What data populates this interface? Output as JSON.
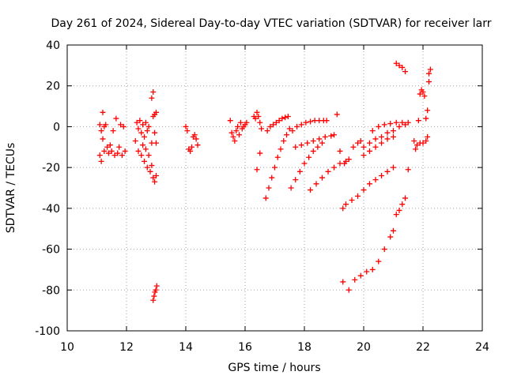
{
  "chart_data": {
    "type": "scatter",
    "title": "Day 261 of 2024, Sidereal Day-to-day VTEC variation (SDTVAR) for receiver larr",
    "xlabel": "GPS time / hours",
    "ylabel": "SDTVAR / TECUs",
    "xlim": [
      10,
      24
    ],
    "ylim": [
      -100,
      40
    ],
    "xticks": [
      10,
      12,
      14,
      16,
      18,
      20,
      22,
      24
    ],
    "yticks": [
      -100,
      -80,
      -60,
      -40,
      -20,
      0,
      20,
      40
    ],
    "xtick_labels": [
      "10",
      "12",
      "14",
      "16",
      "18",
      "20",
      "22",
      "24"
    ],
    "ytick_labels": [
      "-100",
      "-80",
      "-60",
      "-40",
      "-20",
      "0",
      "20",
      "40"
    ],
    "grid": true,
    "marker": "plus",
    "color": "#ff0000",
    "series": [
      {
        "name": "cluster_11",
        "points": [
          [
            11.1,
            1
          ],
          [
            11.15,
            -2
          ],
          [
            11.2,
            7
          ],
          [
            11.25,
            0
          ],
          [
            11.3,
            1
          ],
          [
            11.2,
            -6
          ],
          [
            11.1,
            -14
          ],
          [
            11.15,
            -17
          ],
          [
            11.25,
            -12
          ],
          [
            11.35,
            -10
          ],
          [
            11.4,
            -13
          ],
          [
            11.45,
            -9
          ],
          [
            11.5,
            -12
          ],
          [
            11.55,
            -2
          ],
          [
            11.6,
            -14
          ],
          [
            11.65,
            4
          ],
          [
            11.7,
            -13
          ],
          [
            11.75,
            -10
          ],
          [
            11.8,
            1
          ],
          [
            11.85,
            -14
          ],
          [
            11.9,
            0
          ],
          [
            11.95,
            -12
          ]
        ]
      },
      {
        "name": "cluster_12_5",
        "points": [
          [
            12.3,
            -7
          ],
          [
            12.35,
            2
          ],
          [
            12.4,
            -1
          ],
          [
            12.45,
            3
          ],
          [
            12.5,
            -3
          ],
          [
            12.55,
            1
          ],
          [
            12.6,
            -5
          ],
          [
            12.65,
            2
          ],
          [
            12.7,
            -2
          ],
          [
            12.75,
            0
          ],
          [
            12.4,
            -12
          ],
          [
            12.5,
            -14
          ],
          [
            12.55,
            -9
          ],
          [
            12.6,
            -17
          ],
          [
            12.65,
            -11
          ],
          [
            12.7,
            -20
          ],
          [
            12.75,
            -14
          ],
          [
            12.8,
            -22
          ],
          [
            12.85,
            -19
          ],
          [
            12.9,
            -25
          ],
          [
            12.95,
            -27
          ],
          [
            13.0,
            -24
          ],
          [
            12.85,
            -8
          ],
          [
            12.9,
            5
          ],
          [
            12.95,
            6
          ],
          [
            13.0,
            7
          ],
          [
            12.85,
            14
          ],
          [
            12.9,
            17
          ],
          [
            12.95,
            -3
          ],
          [
            13.0,
            -8
          ]
        ]
      },
      {
        "name": "cluster_13_low",
        "points": [
          [
            12.9,
            -85
          ],
          [
            12.93,
            -83
          ],
          [
            12.96,
            -81
          ],
          [
            12.99,
            -80
          ],
          [
            13.02,
            -78
          ]
        ]
      },
      {
        "name": "cluster_14",
        "points": [
          [
            14.0,
            0
          ],
          [
            14.05,
            -2
          ],
          [
            14.1,
            -11
          ],
          [
            14.15,
            -12
          ],
          [
            14.2,
            -10
          ],
          [
            14.25,
            -5
          ],
          [
            14.3,
            -4
          ],
          [
            14.35,
            -6
          ],
          [
            14.4,
            -9
          ]
        ]
      },
      {
        "name": "cluster_15_6",
        "points": [
          [
            15.5,
            3
          ],
          [
            15.55,
            -3
          ],
          [
            15.6,
            -5
          ],
          [
            15.65,
            -7
          ],
          [
            15.7,
            -2
          ],
          [
            15.75,
            0
          ],
          [
            15.8,
            -4
          ],
          [
            15.85,
            2
          ],
          [
            15.9,
            -1
          ],
          [
            15.95,
            0
          ],
          [
            16.0,
            1
          ],
          [
            16.05,
            2
          ]
        ]
      },
      {
        "name": "cluster_16_4",
        "points": [
          [
            16.3,
            5
          ],
          [
            16.35,
            4
          ],
          [
            16.4,
            7
          ],
          [
            16.45,
            5
          ],
          [
            16.5,
            2
          ],
          [
            16.55,
            -1
          ],
          [
            16.5,
            -13
          ],
          [
            16.4,
            -21
          ]
        ]
      },
      {
        "name": "arc_a",
        "points": [
          [
            16.75,
            -2
          ],
          [
            16.85,
            0
          ],
          [
            16.95,
            1
          ],
          [
            17.05,
            2
          ],
          [
            17.15,
            3
          ],
          [
            17.25,
            4
          ],
          [
            17.35,
            4.5
          ],
          [
            17.45,
            5
          ]
        ]
      },
      {
        "name": "arc_b",
        "points": [
          [
            16.7,
            -35
          ],
          [
            16.8,
            -30
          ],
          [
            16.9,
            -25
          ],
          [
            17.0,
            -20
          ],
          [
            17.1,
            -15
          ],
          [
            17.2,
            -11
          ],
          [
            17.3,
            -7
          ],
          [
            17.4,
            -4
          ],
          [
            17.5,
            -1
          ]
        ]
      },
      {
        "name": "arc_c",
        "points": [
          [
            17.6,
            -2
          ],
          [
            17.75,
            0
          ],
          [
            17.9,
            1
          ],
          [
            18.05,
            2
          ],
          [
            18.2,
            2.5
          ],
          [
            18.35,
            3
          ],
          [
            18.5,
            3
          ],
          [
            18.65,
            3
          ],
          [
            18.75,
            3
          ]
        ]
      },
      {
        "name": "arc_d",
        "points": [
          [
            17.55,
            -30
          ],
          [
            17.7,
            -26
          ],
          [
            17.85,
            -22
          ],
          [
            18.0,
            -18
          ],
          [
            18.15,
            -15
          ],
          [
            18.3,
            -12
          ],
          [
            18.45,
            -10
          ],
          [
            18.6,
            -8
          ]
        ]
      },
      {
        "name": "arc_e",
        "points": [
          [
            17.7,
            -10
          ],
          [
            17.9,
            -9
          ],
          [
            18.1,
            -8
          ],
          [
            18.3,
            -7
          ],
          [
            18.5,
            -6
          ],
          [
            18.7,
            -5
          ],
          [
            18.9,
            -4.5
          ],
          [
            19.0,
            -4
          ]
        ]
      },
      {
        "name": "arc_f",
        "points": [
          [
            18.2,
            -31
          ],
          [
            18.4,
            -28
          ],
          [
            18.6,
            -25
          ],
          [
            18.8,
            -22
          ],
          [
            19.0,
            -20
          ],
          [
            19.2,
            -18
          ],
          [
            19.4,
            -17
          ]
        ]
      },
      {
        "name": "arc_g",
        "points": [
          [
            19.1,
            6
          ],
          [
            19.2,
            -12
          ],
          [
            19.35,
            -18
          ],
          [
            19.5,
            -16
          ],
          [
            19.65,
            -10
          ],
          [
            19.8,
            -8
          ],
          [
            19.9,
            -7
          ]
        ]
      },
      {
        "name": "arc_h",
        "points": [
          [
            19.3,
            -40
          ],
          [
            19.4,
            -38
          ],
          [
            19.6,
            -36
          ],
          [
            19.8,
            -34
          ],
          [
            20.0,
            -31
          ],
          [
            20.2,
            -28
          ],
          [
            20.4,
            -26
          ],
          [
            20.6,
            -24
          ],
          [
            20.8,
            -22
          ],
          [
            21.0,
            -20
          ]
        ]
      },
      {
        "name": "arc_i",
        "points": [
          [
            20.0,
            -14
          ],
          [
            20.2,
            -12
          ],
          [
            20.4,
            -10
          ],
          [
            20.6,
            -8
          ],
          [
            20.8,
            -6
          ],
          [
            21.0,
            -5
          ]
        ]
      },
      {
        "name": "arc_j",
        "points": [
          [
            20.0,
            -10
          ],
          [
            20.2,
            -8
          ],
          [
            20.4,
            -6
          ],
          [
            20.6,
            -5
          ],
          [
            20.8,
            -3
          ],
          [
            21.0,
            -2
          ],
          [
            21.2,
            0
          ],
          [
            21.4,
            1
          ]
        ]
      },
      {
        "name": "arc_k",
        "points": [
          [
            20.3,
            -2
          ],
          [
            20.5,
            0
          ],
          [
            20.7,
            1
          ],
          [
            20.9,
            1.5
          ],
          [
            21.1,
            2
          ],
          [
            21.3,
            2
          ],
          [
            21.5,
            2
          ]
        ]
      },
      {
        "name": "arc_l",
        "points": [
          [
            19.3,
            -76
          ],
          [
            19.5,
            -80
          ],
          [
            19.7,
            -75
          ],
          [
            19.9,
            -73
          ],
          [
            20.1,
            -71
          ],
          [
            20.3,
            -70
          ],
          [
            20.5,
            -66
          ],
          [
            20.7,
            -60
          ],
          [
            20.9,
            -54
          ],
          [
            21.0,
            -51
          ]
        ]
      },
      {
        "name": "arc_m",
        "points": [
          [
            21.1,
            -43
          ],
          [
            21.2,
            -41
          ],
          [
            21.3,
            -38
          ],
          [
            21.4,
            -35
          ],
          [
            21.5,
            -21
          ]
        ]
      },
      {
        "name": "cluster_21_top",
        "points": [
          [
            21.1,
            31
          ],
          [
            21.2,
            30
          ],
          [
            21.3,
            29
          ],
          [
            21.4,
            27
          ]
        ]
      },
      {
        "name": "cluster_22",
        "points": [
          [
            21.7,
            -7
          ],
          [
            21.75,
            -11
          ],
          [
            21.8,
            -9
          ],
          [
            21.85,
            3
          ],
          [
            21.9,
            16
          ],
          [
            21.95,
            18
          ],
          [
            22.0,
            17
          ],
          [
            22.05,
            15
          ],
          [
            22.1,
            4
          ],
          [
            22.15,
            8
          ],
          [
            22.2,
            26
          ],
          [
            22.25,
            28
          ],
          [
            22.2,
            22
          ],
          [
            21.9,
            -8
          ],
          [
            22.0,
            -8
          ],
          [
            22.1,
            -7
          ],
          [
            22.15,
            -5
          ]
        ]
      }
    ]
  }
}
